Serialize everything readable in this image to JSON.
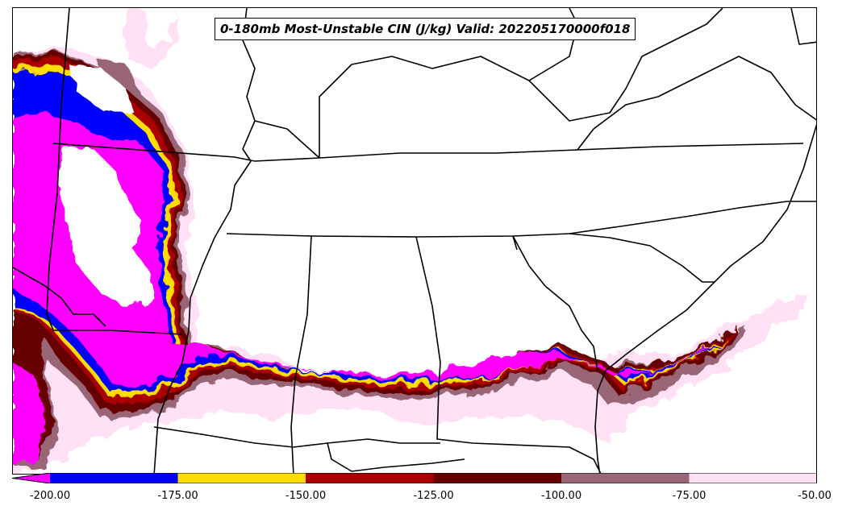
{
  "map": {
    "title": "0-180mb Most-Unstable CIN (J/kg) Valid: 202205170000f018"
  },
  "colorbar": {
    "ticks": [
      "-200.00",
      "-175.00",
      "-150.00",
      "-125.00",
      "-100.00",
      "-75.00",
      "-50.00"
    ],
    "extend": "min",
    "colors": {
      "below_min": "#ff00ff",
      "bands": [
        "#0000ff",
        "#ffdd00",
        "#aa0000",
        "#660000",
        "#996677",
        "#ffe0f5"
      ]
    }
  },
  "colors": {
    "boundary": "#000000",
    "background": "#ffffff"
  }
}
